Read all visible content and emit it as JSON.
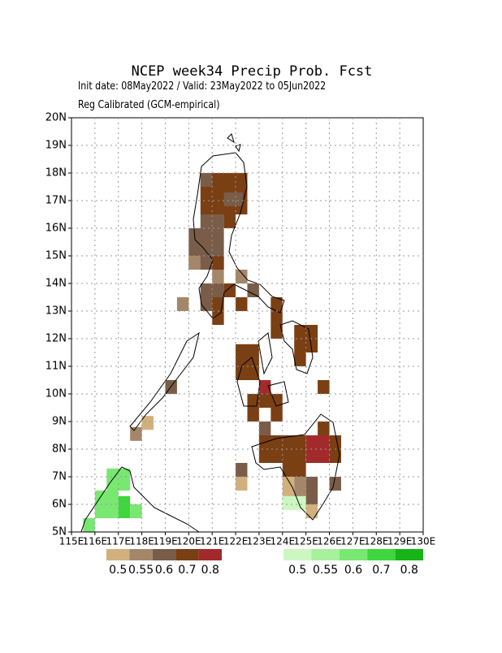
{
  "header": {
    "title": "NCEP week34 Precip Prob. Fcst",
    "line1": "Init date: 08May2022 / Valid: 23May2022 to 05Jun2022",
    "line2": "Reg Calibrated (GCM-empirical)"
  },
  "map": {
    "xlim": [
      115,
      130
    ],
    "ylim": [
      5,
      20
    ],
    "xticks": [
      {
        "value": 115,
        "label": "115E"
      },
      {
        "value": 116,
        "label": "116E"
      },
      {
        "value": 117,
        "label": "117E"
      },
      {
        "value": 118,
        "label": "118E"
      },
      {
        "value": 119,
        "label": "119E"
      },
      {
        "value": 120,
        "label": "120E"
      },
      {
        "value": 121,
        "label": "121E"
      },
      {
        "value": 122,
        "label": "122E"
      },
      {
        "value": 123,
        "label": "123E"
      },
      {
        "value": 124,
        "label": "124E"
      },
      {
        "value": 125,
        "label": "125E"
      },
      {
        "value": 126,
        "label": "126E"
      },
      {
        "value": 127,
        "label": "127E"
      },
      {
        "value": 128,
        "label": "128E"
      },
      {
        "value": 129,
        "label": "129E"
      },
      {
        "value": 130,
        "label": "130E"
      }
    ],
    "yticks": [
      {
        "value": 5,
        "label": "5N"
      },
      {
        "value": 6,
        "label": "6N"
      },
      {
        "value": 7,
        "label": "7N"
      },
      {
        "value": 8,
        "label": "8N"
      },
      {
        "value": 9,
        "label": "9N"
      },
      {
        "value": 10,
        "label": "10N"
      },
      {
        "value": 11,
        "label": "11N"
      },
      {
        "value": 12,
        "label": "12N"
      },
      {
        "value": 13,
        "label": "13N"
      },
      {
        "value": 14,
        "label": "14N"
      },
      {
        "value": 15,
        "label": "15N"
      },
      {
        "value": 16,
        "label": "16N"
      },
      {
        "value": 17,
        "label": "17N"
      },
      {
        "value": 18,
        "label": "18N"
      },
      {
        "value": 19,
        "label": "19N"
      },
      {
        "value": 20,
        "label": "20N"
      }
    ],
    "dry_cells": [
      [
        120.5,
        16.5,
        122.5,
        18.0,
        3
      ],
      [
        120.5,
        17.5,
        121.0,
        18.0,
        2
      ],
      [
        121.5,
        16.8,
        122.3,
        17.3,
        2
      ],
      [
        120.5,
        16.0,
        121.5,
        16.5,
        2
      ],
      [
        121.5,
        16.0,
        122.0,
        16.5,
        3
      ],
      [
        120.0,
        14.5,
        121.5,
        16.0,
        2
      ],
      [
        120.0,
        14.5,
        120.5,
        15.0,
        1
      ],
      [
        121.0,
        14.5,
        121.5,
        15.0,
        3
      ],
      [
        121.0,
        14.0,
        121.5,
        14.5,
        1
      ],
      [
        122.0,
        14.0,
        122.5,
        14.5,
        1
      ],
      [
        120.5,
        13.5,
        121.5,
        14.0,
        2
      ],
      [
        121.5,
        13.5,
        122.0,
        14.0,
        3
      ],
      [
        122.5,
        13.5,
        123.0,
        14.0,
        2
      ],
      [
        120.5,
        13.0,
        121.5,
        13.5,
        2
      ],
      [
        121.0,
        12.5,
        121.5,
        13.5,
        3
      ],
      [
        122.0,
        13.0,
        122.5,
        13.5,
        3
      ],
      [
        123.5,
        12.5,
        124.0,
        13.5,
        3
      ],
      [
        123.5,
        12.0,
        124.0,
        12.5,
        3
      ],
      [
        124.5,
        11.5,
        125.5,
        12.5,
        3
      ],
      [
        124.5,
        11.0,
        125.0,
        11.5,
        3
      ],
      [
        122.0,
        10.5,
        123.0,
        11.8,
        3
      ],
      [
        123.0,
        10.0,
        123.5,
        10.5,
        4
      ],
      [
        122.5,
        9.5,
        124.0,
        10.0,
        3
      ],
      [
        122.5,
        9.0,
        123.0,
        9.5,
        3
      ],
      [
        123.5,
        9.0,
        124.0,
        9.5,
        3
      ],
      [
        123.0,
        8.5,
        123.5,
        9.0,
        2
      ],
      [
        125.5,
        10.0,
        126.0,
        10.5,
        3
      ],
      [
        125.5,
        8.5,
        126.0,
        9.0,
        3
      ],
      [
        123.0,
        7.5,
        125.0,
        8.5,
        3
      ],
      [
        125.0,
        7.5,
        126.0,
        8.5,
        4
      ],
      [
        126.0,
        7.5,
        126.5,
        8.5,
        3
      ],
      [
        124.0,
        7.0,
        125.0,
        7.5,
        3
      ],
      [
        124.0,
        6.0,
        124.5,
        7.0,
        0
      ],
      [
        124.5,
        6.0,
        125.0,
        7.0,
        1
      ],
      [
        125.0,
        6.0,
        125.5,
        7.0,
        2
      ],
      [
        126.0,
        6.5,
        126.5,
        7.0,
        2
      ],
      [
        125.0,
        5.5,
        125.5,
        6.0,
        0
      ],
      [
        122.0,
        6.5,
        122.5,
        7.0,
        0
      ],
      [
        122.0,
        7.0,
        122.5,
        7.5,
        2
      ],
      [
        119.0,
        10.0,
        119.5,
        10.5,
        2
      ],
      [
        118.0,
        8.7,
        118.5,
        9.2,
        0
      ],
      [
        117.5,
        8.3,
        118.0,
        8.8,
        1
      ],
      [
        119.5,
        13.0,
        120.0,
        13.5,
        1
      ]
    ],
    "wet_cells": [
      [
        116.0,
        5.5,
        117.0,
        6.5,
        2
      ],
      [
        116.5,
        6.5,
        117.5,
        7.3,
        2
      ],
      [
        117.0,
        5.5,
        117.5,
        6.3,
        3
      ],
      [
        117.5,
        5.5,
        118.0,
        6.0,
        2
      ],
      [
        115.5,
        5.0,
        116.0,
        5.5,
        2
      ],
      [
        124.0,
        5.8,
        125.0,
        6.3,
        0
      ]
    ],
    "dry_colors": [
      "#d2b07e",
      "#a4876a",
      "#7a5d48",
      "#7b3f14",
      "#a32a2a"
    ],
    "wet_colors": [
      "#ccf7c1",
      "#a7f09c",
      "#78e870",
      "#3fd63d",
      "#17b417"
    ],
    "dry_labels": [
      "0.5",
      "0.55",
      "0.6",
      "0.7",
      "0.8"
    ],
    "wet_labels": [
      "0.5",
      "0.55",
      "0.6",
      "0.7",
      "0.8"
    ]
  }
}
